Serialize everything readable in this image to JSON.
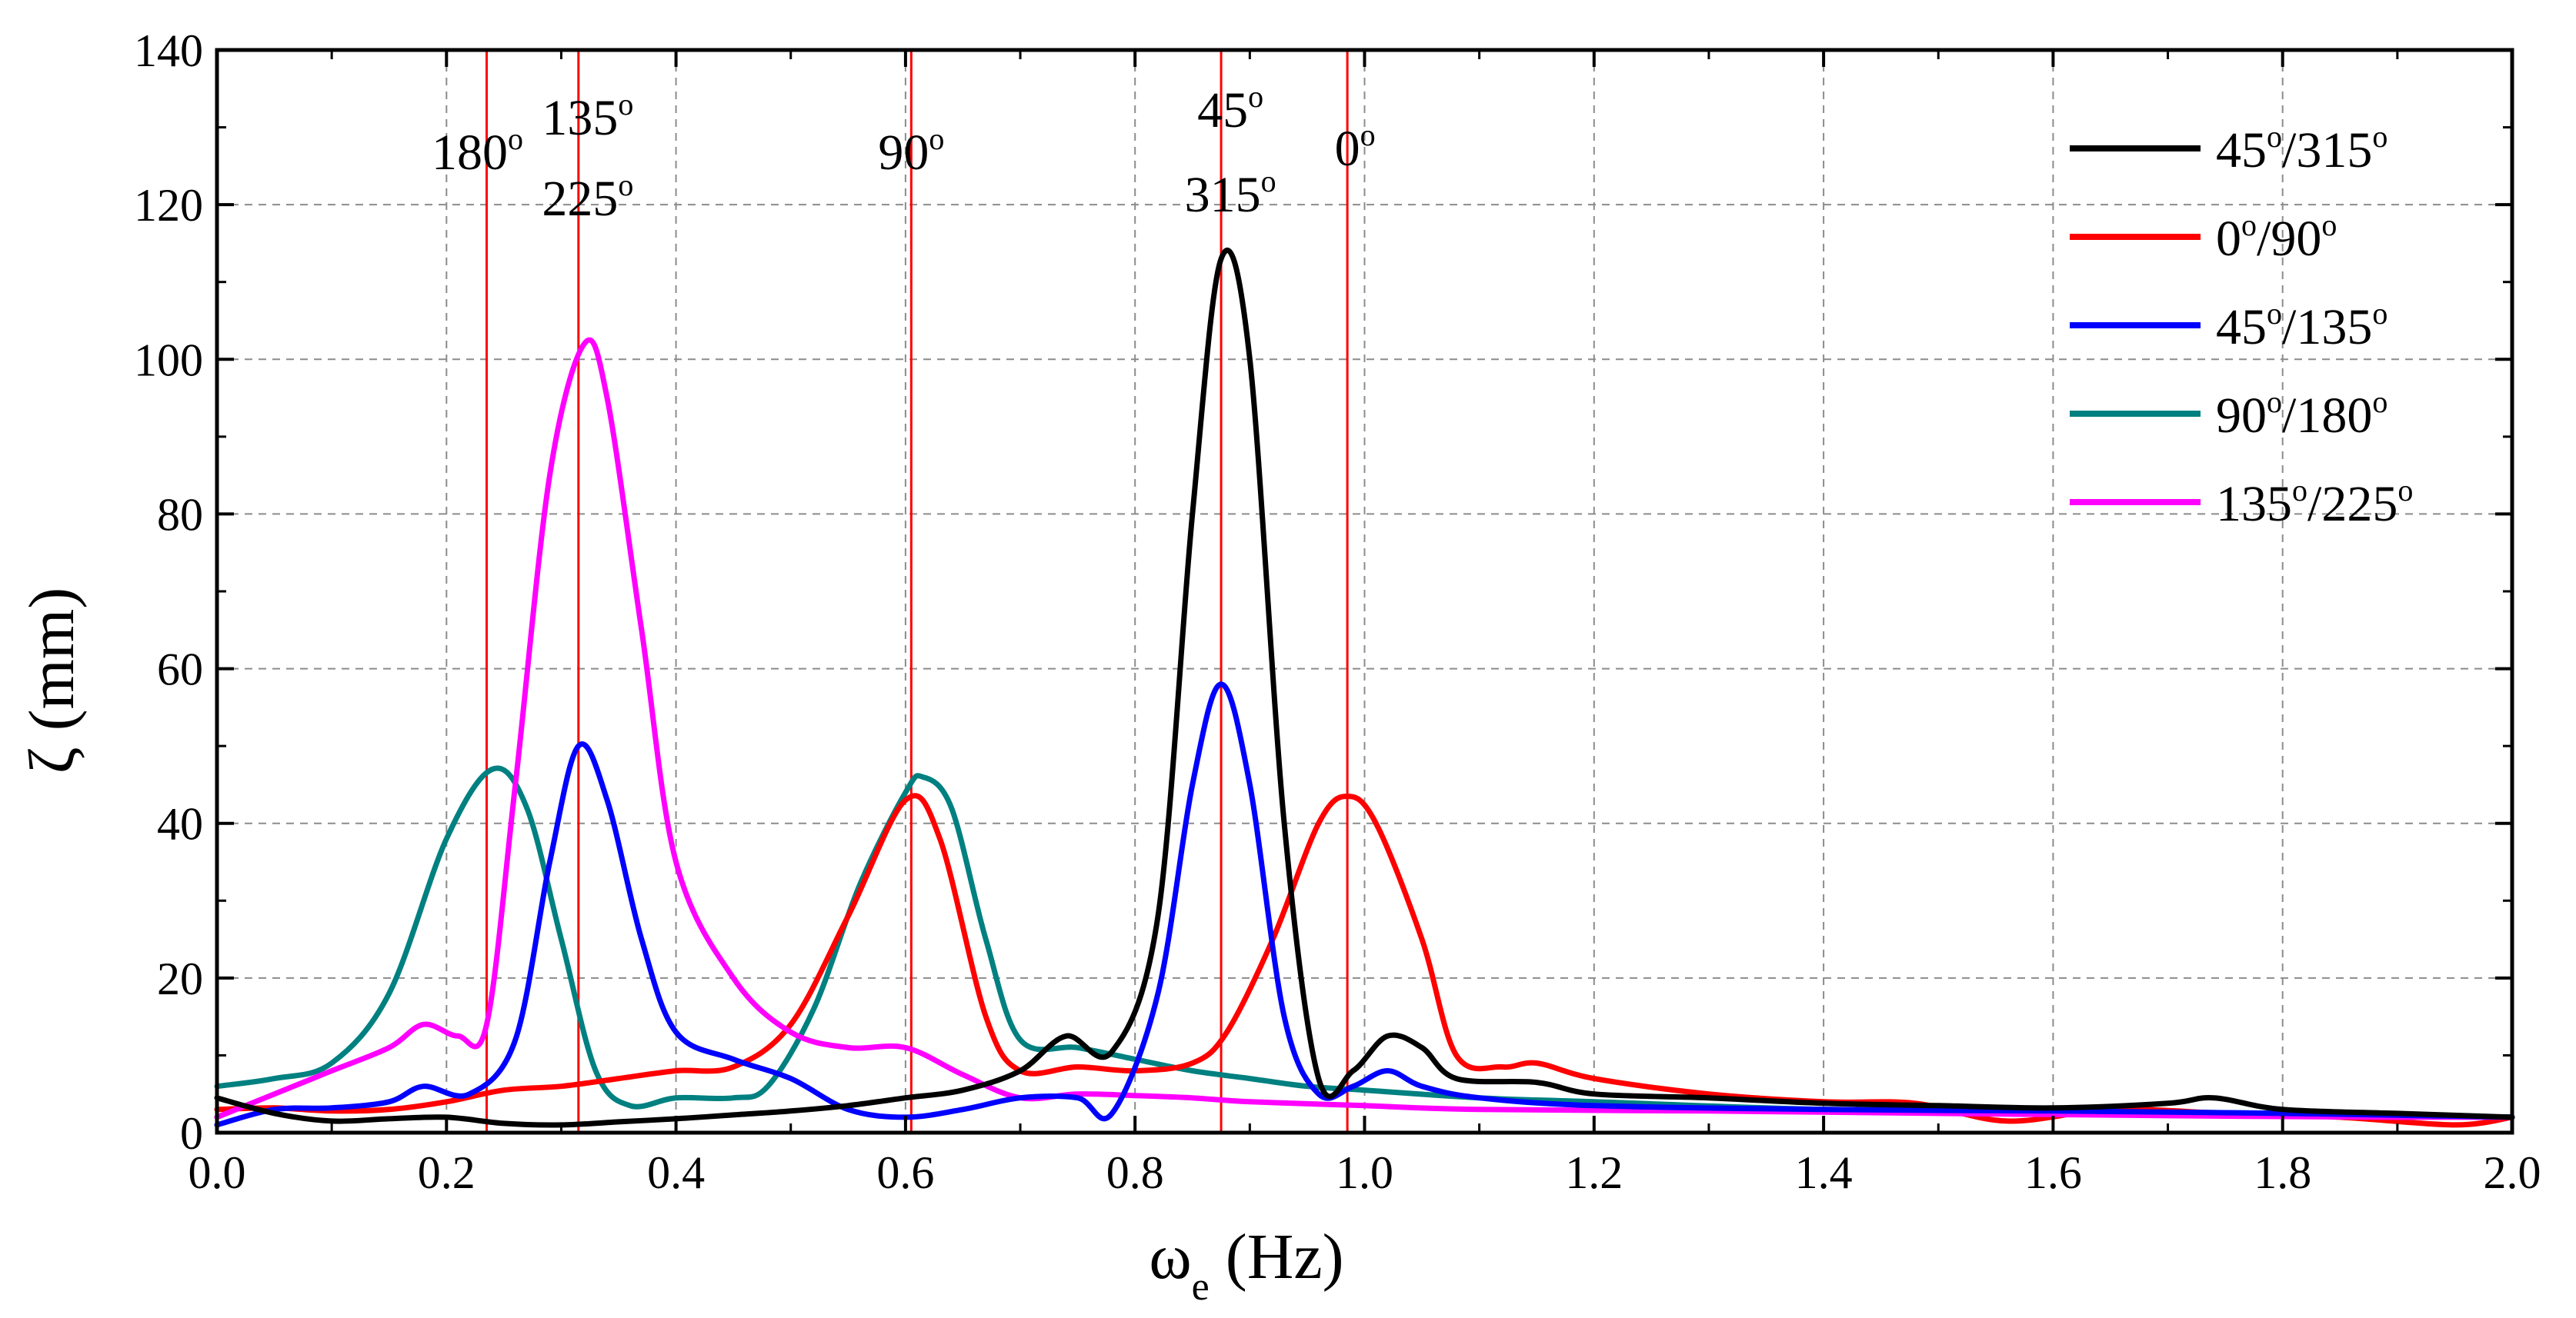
{
  "chart_data": {
    "type": "line",
    "title": "",
    "xlabel_main": "ω",
    "xlabel_sub": "e",
    "xlabel_unit": " (Hz)",
    "ylabel": "ζ (mm)",
    "xlim": [
      0.0,
      2.0
    ],
    "ylim": [
      0,
      140
    ],
    "xticks": [
      "0.0",
      "0.2",
      "0.4",
      "0.6",
      "0.8",
      "1.0",
      "1.2",
      "1.4",
      "1.6",
      "1.8",
      "2.0"
    ],
    "yticks": [
      "0",
      "20",
      "40",
      "60",
      "80",
      "100",
      "120",
      "140"
    ],
    "grid": true,
    "legend_position": "top-right",
    "series": [
      {
        "name": "45°/315°",
        "color": "#000000",
        "points": [
          [
            0.0,
            4.5
          ],
          [
            0.05,
            2.5
          ],
          [
            0.1,
            1.5
          ],
          [
            0.15,
            1.8
          ],
          [
            0.2,
            2.0
          ],
          [
            0.25,
            1.2
          ],
          [
            0.3,
            1.0
          ],
          [
            0.35,
            1.4
          ],
          [
            0.4,
            1.8
          ],
          [
            0.45,
            2.3
          ],
          [
            0.5,
            2.8
          ],
          [
            0.55,
            3.5
          ],
          [
            0.6,
            4.5
          ],
          [
            0.65,
            5.5
          ],
          [
            0.7,
            8.0
          ],
          [
            0.74,
            12.5
          ],
          [
            0.78,
            10.5
          ],
          [
            0.82,
            28.0
          ],
          [
            0.85,
            80.0
          ],
          [
            0.875,
            113.0
          ],
          [
            0.9,
            100.0
          ],
          [
            0.93,
            40.0
          ],
          [
            0.96,
            7.0
          ],
          [
            0.99,
            8.0
          ],
          [
            1.02,
            12.5
          ],
          [
            1.05,
            11.0
          ],
          [
            1.08,
            7.0
          ],
          [
            1.15,
            6.5
          ],
          [
            1.2,
            5.0
          ],
          [
            1.3,
            4.5
          ],
          [
            1.4,
            3.8
          ],
          [
            1.5,
            3.5
          ],
          [
            1.6,
            3.2
          ],
          [
            1.7,
            3.8
          ],
          [
            1.74,
            4.5
          ],
          [
            1.8,
            3.0
          ],
          [
            1.9,
            2.5
          ],
          [
            2.0,
            2.0
          ]
        ]
      },
      {
        "name": "0°/90°",
        "color": "#ff0000",
        "points": [
          [
            0.0,
            3.0
          ],
          [
            0.05,
            3.2
          ],
          [
            0.1,
            2.8
          ],
          [
            0.15,
            3.0
          ],
          [
            0.2,
            4.0
          ],
          [
            0.25,
            5.5
          ],
          [
            0.3,
            6.0
          ],
          [
            0.35,
            7.0
          ],
          [
            0.4,
            8.0
          ],
          [
            0.45,
            8.5
          ],
          [
            0.5,
            14.0
          ],
          [
            0.55,
            28.0
          ],
          [
            0.6,
            43.0
          ],
          [
            0.63,
            38.0
          ],
          [
            0.67,
            15.0
          ],
          [
            0.7,
            8.0
          ],
          [
            0.75,
            8.5
          ],
          [
            0.8,
            8.0
          ],
          [
            0.85,
            9.0
          ],
          [
            0.88,
            13.0
          ],
          [
            0.92,
            25.0
          ],
          [
            0.96,
            40.0
          ],
          [
            0.985,
            43.5
          ],
          [
            1.01,
            40.0
          ],
          [
            1.05,
            25.0
          ],
          [
            1.08,
            10.0
          ],
          [
            1.12,
            8.5
          ],
          [
            1.15,
            9.0
          ],
          [
            1.2,
            7.0
          ],
          [
            1.3,
            5.0
          ],
          [
            1.4,
            4.0
          ],
          [
            1.48,
            3.8
          ],
          [
            1.56,
            1.5
          ],
          [
            1.65,
            3.0
          ],
          [
            1.75,
            2.5
          ],
          [
            1.85,
            2.0
          ],
          [
            1.95,
            1.0
          ],
          [
            2.0,
            2.0
          ]
        ]
      },
      {
        "name": "45°/135°",
        "color": "#0000ff",
        "points": [
          [
            0.0,
            1.0
          ],
          [
            0.05,
            3.0
          ],
          [
            0.1,
            3.2
          ],
          [
            0.15,
            4.0
          ],
          [
            0.18,
            6.0
          ],
          [
            0.22,
            5.0
          ],
          [
            0.26,
            12.0
          ],
          [
            0.29,
            35.0
          ],
          [
            0.315,
            50.0
          ],
          [
            0.34,
            43.0
          ],
          [
            0.37,
            25.0
          ],
          [
            0.4,
            13.0
          ],
          [
            0.45,
            9.5
          ],
          [
            0.5,
            7.0
          ],
          [
            0.55,
            3.0
          ],
          [
            0.6,
            2.0
          ],
          [
            0.65,
            3.0
          ],
          [
            0.7,
            4.5
          ],
          [
            0.75,
            4.5
          ],
          [
            0.78,
            2.5
          ],
          [
            0.82,
            18.0
          ],
          [
            0.85,
            45.0
          ],
          [
            0.875,
            58.0
          ],
          [
            0.9,
            45.0
          ],
          [
            0.93,
            15.0
          ],
          [
            0.96,
            5.0
          ],
          [
            0.99,
            6.0
          ],
          [
            1.02,
            8.0
          ],
          [
            1.05,
            6.0
          ],
          [
            1.1,
            4.5
          ],
          [
            1.2,
            3.5
          ],
          [
            1.4,
            3.0
          ],
          [
            1.6,
            2.8
          ],
          [
            1.8,
            2.5
          ],
          [
            2.0,
            2.0
          ]
        ]
      },
      {
        "name": "90°/180°",
        "color": "#008080",
        "points": [
          [
            0.0,
            6.0
          ],
          [
            0.05,
            7.0
          ],
          [
            0.1,
            9.0
          ],
          [
            0.15,
            18.0
          ],
          [
            0.2,
            38.0
          ],
          [
            0.24,
            47.0
          ],
          [
            0.27,
            42.0
          ],
          [
            0.3,
            25.0
          ],
          [
            0.33,
            8.0
          ],
          [
            0.36,
            3.5
          ],
          [
            0.4,
            4.5
          ],
          [
            0.45,
            4.5
          ],
          [
            0.48,
            6.0
          ],
          [
            0.52,
            16.0
          ],
          [
            0.56,
            32.0
          ],
          [
            0.6,
            44.0
          ],
          [
            0.615,
            46.0
          ],
          [
            0.64,
            42.0
          ],
          [
            0.67,
            25.0
          ],
          [
            0.7,
            12.0
          ],
          [
            0.75,
            11.0
          ],
          [
            0.8,
            9.5
          ],
          [
            0.85,
            8.0
          ],
          [
            0.9,
            7.0
          ],
          [
            0.95,
            6.0
          ],
          [
            1.0,
            5.5
          ],
          [
            1.1,
            4.5
          ],
          [
            1.2,
            4.0
          ],
          [
            1.4,
            3.0
          ],
          [
            1.6,
            2.8
          ],
          [
            1.8,
            2.5
          ],
          [
            2.0,
            2.0
          ]
        ]
      },
      {
        "name": "135°/225°",
        "color": "#ff00ff",
        "points": [
          [
            0.0,
            2.0
          ],
          [
            0.05,
            5.0
          ],
          [
            0.1,
            8.0
          ],
          [
            0.15,
            11.0
          ],
          [
            0.18,
            14.0
          ],
          [
            0.21,
            12.5
          ],
          [
            0.235,
            14.0
          ],
          [
            0.26,
            45.0
          ],
          [
            0.29,
            85.0
          ],
          [
            0.32,
            102.0
          ],
          [
            0.34,
            95.0
          ],
          [
            0.37,
            65.0
          ],
          [
            0.4,
            35.0
          ],
          [
            0.45,
            20.0
          ],
          [
            0.5,
            13.0
          ],
          [
            0.55,
            11.0
          ],
          [
            0.6,
            11.0
          ],
          [
            0.65,
            7.5
          ],
          [
            0.7,
            4.5
          ],
          [
            0.75,
            5.0
          ],
          [
            0.8,
            4.8
          ],
          [
            0.85,
            4.5
          ],
          [
            0.9,
            4.0
          ],
          [
            1.0,
            3.5
          ],
          [
            1.1,
            3.0
          ],
          [
            1.3,
            2.8
          ],
          [
            1.5,
            2.5
          ],
          [
            1.7,
            2.2
          ],
          [
            1.9,
            2.0
          ],
          [
            2.0,
            2.0
          ]
        ]
      }
    ],
    "marker_lines": [
      {
        "x": 0.235,
        "labels": [
          "180°"
        ]
      },
      {
        "x": 0.315,
        "labels": [
          "135°",
          "225°"
        ]
      },
      {
        "x": 0.605,
        "labels": [
          "90°"
        ]
      },
      {
        "x": 0.875,
        "labels": [
          "45°",
          "315°"
        ]
      },
      {
        "x": 0.985,
        "labels": [
          "0°"
        ]
      }
    ]
  }
}
